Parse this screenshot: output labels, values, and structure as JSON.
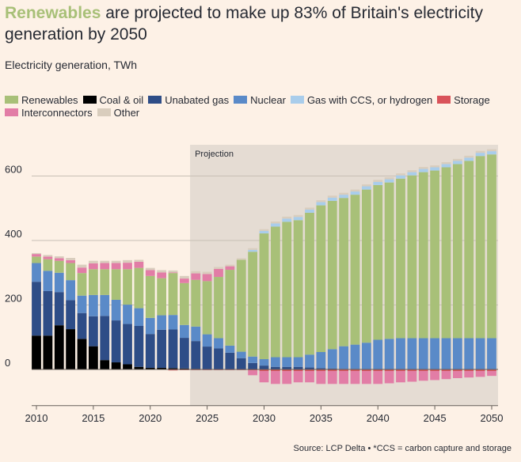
{
  "header": {
    "title_highlight": "Renewables",
    "title_rest": " are projected to make up 83% of Britain's electricity generation by 2050",
    "subtitle": "Electricity generation, TWh"
  },
  "footer": {
    "source": "Source: LCP Delta • *CCS = carbon capture and storage"
  },
  "chart_data": {
    "type": "bar",
    "stacked": true,
    "title": "Renewables are projected to make up 83% of Britain's electricity generation by 2050",
    "ylabel": "Electricity generation, TWh",
    "ylim": [
      -100,
      700
    ],
    "yticks": [
      0,
      200,
      400,
      600
    ],
    "ytick_labels": [
      "0",
      "200",
      "400",
      "600"
    ],
    "xtick_labels": [
      "2010",
      "2015",
      "2020",
      "2025",
      "2030",
      "2035",
      "2040",
      "2045",
      "2050"
    ],
    "xticks": [
      2010,
      2015,
      2020,
      2025,
      2030,
      2035,
      2040,
      2045,
      2050
    ],
    "projection_label": "Projection",
    "projection_start": 2023.5,
    "categories": [
      2010,
      2011,
      2012,
      2013,
      2014,
      2015,
      2016,
      2017,
      2018,
      2019,
      2020,
      2021,
      2022,
      2023,
      2024,
      2025,
      2026,
      2027,
      2028,
      2029,
      2030,
      2031,
      2032,
      2033,
      2034,
      2035,
      2036,
      2037,
      2038,
      2039,
      2040,
      2041,
      2042,
      2043,
      2044,
      2045,
      2046,
      2047,
      2048,
      2049,
      2050
    ],
    "legend": [
      {
        "name": "Renewables",
        "color": "#a8c078"
      },
      {
        "name": "Coal & oil",
        "color": "#000000"
      },
      {
        "name": "Unabated gas",
        "color": "#2e4d87"
      },
      {
        "name": "Nuclear",
        "color": "#5a8ac8"
      },
      {
        "name": "Gas with CCS, or hydrogen",
        "color": "#a9cdeb"
      },
      {
        "name": "Storage",
        "color": "#d9535a"
      },
      {
        "name": "Interconnectors",
        "color": "#e27da6"
      },
      {
        "name": "Other",
        "color": "#d9cdbd"
      }
    ],
    "series": [
      {
        "name": "Coal & oil",
        "values": [
          105,
          105,
          137,
          125,
          95,
          72,
          29,
          22,
          16,
          8,
          5,
          5,
          4,
          3,
          2,
          1,
          0,
          0,
          0,
          0,
          0,
          0,
          0,
          0,
          0,
          0,
          0,
          0,
          0,
          0,
          0,
          0,
          0,
          0,
          0,
          0,
          0,
          0,
          0,
          0,
          0
        ]
      },
      {
        "name": "Unabated gas",
        "values": [
          167,
          138,
          103,
          90,
          80,
          93,
          137,
          130,
          125,
          127,
          105,
          118,
          120,
          95,
          86,
          70,
          65,
          52,
          35,
          20,
          12,
          8,
          8,
          8,
          6,
          4,
          3,
          2,
          2,
          1,
          0,
          0,
          0,
          0,
          0,
          0,
          0,
          0,
          0,
          0,
          0
        ]
      },
      {
        "name": "Nuclear",
        "values": [
          58,
          63,
          60,
          62,
          54,
          66,
          65,
          64,
          60,
          55,
          50,
          45,
          45,
          40,
          45,
          38,
          32,
          22,
          20,
          20,
          20,
          30,
          30,
          30,
          40,
          50,
          60,
          70,
          75,
          82,
          92,
          95,
          97,
          97,
          97,
          97,
          97,
          97,
          97,
          97,
          97
        ]
      },
      {
        "name": "Renewables",
        "values": [
          20,
          36,
          37,
          53,
          70,
          80,
          80,
          95,
          110,
          125,
          130,
          115,
          130,
          130,
          145,
          165,
          190,
          235,
          285,
          325,
          390,
          405,
          420,
          425,
          440,
          455,
          460,
          460,
          465,
          475,
          480,
          485,
          495,
          505,
          515,
          520,
          530,
          540,
          550,
          565,
          570
        ]
      },
      {
        "name": "Gas with CCS, or hydrogen",
        "values": [
          0,
          0,
          0,
          0,
          0,
          0,
          0,
          0,
          0,
          0,
          0,
          0,
          0,
          0,
          0,
          0,
          0,
          0,
          0,
          6,
          8,
          10,
          10,
          10,
          10,
          10,
          10,
          10,
          10,
          10,
          10,
          10,
          10,
          10,
          10,
          10,
          10,
          10,
          10,
          10,
          10
        ]
      },
      {
        "name": "Storage",
        "values": [
          0,
          0,
          0,
          0,
          0,
          0,
          0,
          0,
          0,
          0,
          0,
          0,
          0,
          0,
          0,
          0,
          0,
          0,
          0,
          0,
          0,
          0,
          0,
          0,
          0,
          0,
          0,
          0,
          0,
          0,
          0,
          0,
          0,
          0,
          0,
          0,
          0,
          0,
          0,
          0,
          0
        ]
      },
      {
        "name": "Interconnectors",
        "values": [
          8,
          8,
          8,
          9,
          17,
          18,
          19,
          19,
          20,
          19,
          18,
          18,
          2,
          14,
          20,
          22,
          25,
          11,
          0,
          0,
          0,
          0,
          0,
          0,
          0,
          0,
          0,
          0,
          0,
          0,
          0,
          0,
          0,
          0,
          0,
          0,
          0,
          0,
          0,
          0,
          0
        ]
      },
      {
        "name": "Other",
        "values": [
          3,
          5,
          6,
          7,
          9,
          8,
          7,
          7,
          8,
          6,
          7,
          7,
          6,
          8,
          7,
          7,
          6,
          5,
          5,
          5,
          5,
          6,
          6,
          6,
          6,
          6,
          6,
          6,
          6,
          6,
          6,
          6,
          6,
          6,
          6,
          6,
          6,
          6,
          6,
          6,
          6
        ]
      }
    ],
    "negative_series": [
      {
        "name": "Storage",
        "values": [
          0,
          0,
          0,
          0,
          0,
          0,
          0,
          0,
          0,
          0,
          0,
          0,
          -3,
          -2,
          -2,
          -2,
          -2,
          -2,
          -2,
          -3,
          -5,
          -5,
          -5,
          -5,
          -5,
          -5,
          -5,
          -5,
          -5,
          -5,
          -5,
          -5,
          -5,
          -5,
          -5,
          -5,
          -5,
          -5,
          -5,
          -5,
          -5
        ]
      },
      {
        "name": "Interconnectors",
        "values": [
          0,
          0,
          0,
          0,
          0,
          0,
          0,
          0,
          0,
          0,
          0,
          0,
          0,
          0,
          0,
          0,
          0,
          0,
          0,
          -15,
          -35,
          -40,
          -40,
          -35,
          -35,
          -40,
          -40,
          -40,
          -40,
          -40,
          -40,
          -38,
          -35,
          -33,
          -30,
          -28,
          -25,
          -22,
          -20,
          -18,
          -15
        ]
      }
    ]
  }
}
